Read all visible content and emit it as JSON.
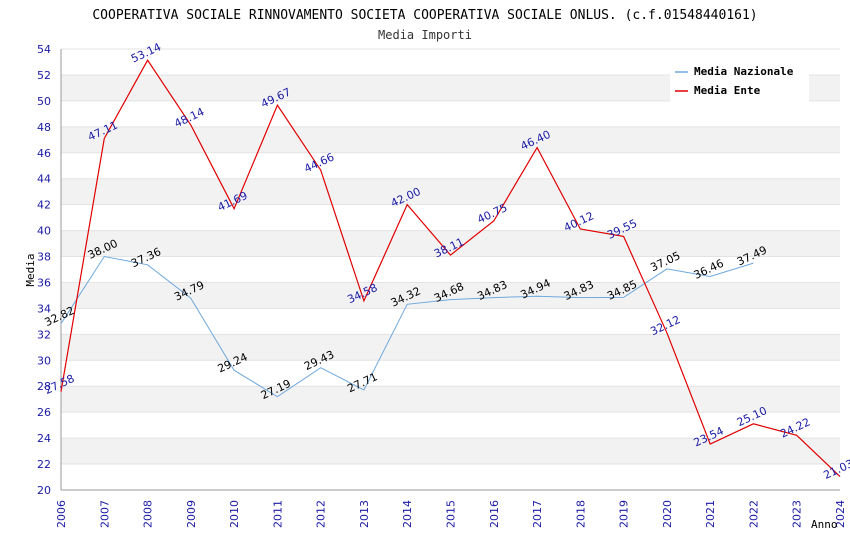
{
  "chart_data": {
    "type": "line",
    "title": "COOPERATIVA SOCIALE RINNOVAMENTO SOCIETA COOPERATIVA SOCIALE ONLUS. (c.f.01548440161)",
    "subtitle": "Media Importi",
    "xlabel": "Anno",
    "ylabel": "Media",
    "ylim": [
      20,
      54
    ],
    "y_ticks": [
      "20",
      "22",
      "24",
      "26",
      "28",
      "30",
      "32",
      "34",
      "36",
      "38",
      "40",
      "42",
      "44",
      "46",
      "48",
      "50",
      "52",
      "54"
    ],
    "categories": [
      "2006",
      "2007",
      "2008",
      "2009",
      "2010",
      "2011",
      "2012",
      "2013",
      "2014",
      "2015",
      "2016",
      "2017",
      "2018",
      "2019",
      "2020",
      "2021",
      "2022",
      "2023",
      "2024"
    ],
    "legend_position": "top-right",
    "series": [
      {
        "name": "Media Nazionale",
        "color": "#6fa8dc",
        "values": [
          32.82,
          38.0,
          37.36,
          34.79,
          29.24,
          27.19,
          29.43,
          27.71,
          34.32,
          34.68,
          34.83,
          34.94,
          34.83,
          34.85,
          37.05,
          36.46,
          37.49,
          null,
          null
        ],
        "labels": [
          "32.82",
          "38.00",
          "37.36",
          "34.79",
          "29.24",
          "27.19",
          "29.43",
          "27.71",
          "34.32",
          "34.68",
          "34.83",
          "34.94",
          "34.83",
          "34.85",
          "37.05",
          "36.46",
          "37.49",
          null,
          null
        ]
      },
      {
        "name": "Media Ente",
        "color": "#e00000",
        "values": [
          27.58,
          47.11,
          53.14,
          48.14,
          41.69,
          49.67,
          44.66,
          34.58,
          42.0,
          38.11,
          40.75,
          46.4,
          40.12,
          39.55,
          32.12,
          23.54,
          25.1,
          24.22,
          21.03
        ],
        "labels": [
          "27.58",
          "47.11",
          "53.14",
          "48.14",
          "41.69",
          "49.67",
          "44.66",
          "34.58",
          "42.00",
          "38.11",
          "40.75",
          "46.40",
          "40.12",
          "39.55",
          "32.12",
          "23.54",
          "25.10",
          "24.22",
          "21.03"
        ]
      }
    ]
  }
}
